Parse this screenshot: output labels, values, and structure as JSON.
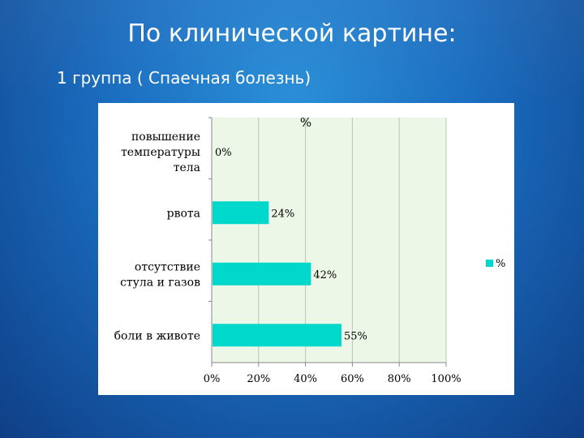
{
  "slide": {
    "title": "По клинической картине:",
    "subtitle": "1 группа ( Спаечная болезнь)"
  },
  "colors": {
    "bar": "#00d8cc",
    "plot_background": "#edf7e8",
    "grid": "#b8c8b0"
  },
  "chart_data": {
    "type": "bar",
    "orientation": "horizontal",
    "title": "%",
    "categories": [
      [
        "повышение",
        "температуры",
        "тела"
      ],
      [
        "рвота"
      ],
      [
        "отсутствие",
        "стула и газов"
      ],
      [
        "боли в животе"
      ]
    ],
    "series": [
      {
        "name": "%",
        "values": [
          0,
          24,
          42,
          55
        ]
      }
    ],
    "data_labels": [
      "0%",
      "24%",
      "42%",
      "55%"
    ],
    "xlim": [
      0,
      100
    ],
    "x_ticks": [
      "0%",
      "20%",
      "40%",
      "60%",
      "80%",
      "100%"
    ],
    "grid": true,
    "legend": {
      "position": "right",
      "entries": [
        "%"
      ]
    }
  }
}
